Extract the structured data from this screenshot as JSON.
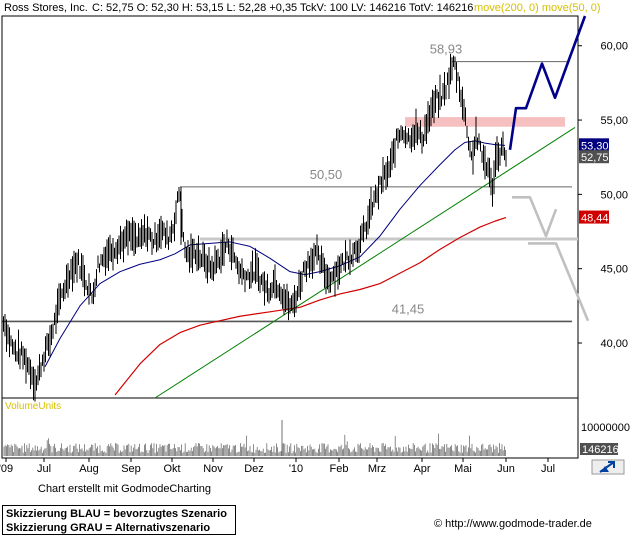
{
  "header": {
    "name": "Ross Stores, Inc.",
    "quote": "C: 52,75 O: 52,30 H: 53,15 L: 52,28 +0,35 TckV: 100 LV: 146216 TotV: 146216",
    "ma_legend": "move(200, 0) move(50, 0)"
  },
  "volume_label": "VolumeUnits",
  "credit": "Chart erstellt mit GodmodeCharting",
  "legend": {
    "blue": "Skizzierung BLAU = bevorzugtes Szenario",
    "grey": "Skizzierung GRAU = Alternativszenario"
  },
  "footer": {
    "copyright": "©",
    "url": "http://www.godmode-trader.de"
  },
  "chart_data": {
    "type": "line",
    "price_axis": {
      "ticks": [
        "60,00",
        "55,00",
        "50,00",
        "45,00",
        "40,00"
      ],
      "ylim": [
        36.3,
        62.0
      ]
    },
    "volume_axis": {
      "ticks": [
        "10000000"
      ],
      "last_volume": "146216"
    },
    "x_ticks": [
      "'09",
      "Jul",
      "Aug",
      "Sep",
      "Okt",
      "Nov",
      "Dez",
      "'10",
      "Feb",
      "Mrz",
      "Apr",
      "Mai",
      "Jun",
      "Jul"
    ],
    "price_labels": {
      "last_close": "52,75",
      "ma50": "53,30",
      "ma200": "48,44"
    },
    "levels": [
      {
        "label": "58,93",
        "value": 58.93
      },
      {
        "label": "50,50",
        "value": 50.5
      },
      {
        "label": "41,45",
        "value": 41.45
      }
    ],
    "resistance_zone": [
      54.55,
      55.2
    ],
    "series_colors": {
      "price": "#000000",
      "ma50": "#000080",
      "ma200": "#d00000",
      "trend": "#008000",
      "blue_scenario": "#00008b",
      "grey_scenario": "#c0c0c0"
    },
    "price_path": [
      [
        2,
        42.0
      ],
      [
        8,
        40.5
      ],
      [
        14,
        39.5
      ],
      [
        22,
        39.2
      ],
      [
        30,
        38.3
      ],
      [
        36,
        37.2
      ],
      [
        42,
        38.8
      ],
      [
        50,
        40.2
      ],
      [
        56,
        41.8
      ],
      [
        62,
        43.3
      ],
      [
        70,
        44.8
      ],
      [
        78,
        45.5
      ],
      [
        86,
        44.2
      ],
      [
        92,
        43.0
      ],
      [
        98,
        45.2
      ],
      [
        106,
        46.0
      ],
      [
        114,
        46.4
      ],
      [
        122,
        46.8
      ],
      [
        130,
        47.2
      ],
      [
        138,
        46.8
      ],
      [
        146,
        47.5
      ],
      [
        154,
        46.8
      ],
      [
        160,
        47.7
      ],
      [
        168,
        47.0
      ],
      [
        174,
        48.0
      ],
      [
        180,
        50.5
      ],
      [
        184,
        46.3
      ],
      [
        190,
        45.8
      ],
      [
        196,
        46.2
      ],
      [
        204,
        45.5
      ],
      [
        212,
        45.0
      ],
      [
        220,
        45.8
      ],
      [
        228,
        46.8
      ],
      [
        234,
        45.8
      ],
      [
        240,
        44.8
      ],
      [
        248,
        44.5
      ],
      [
        256,
        44.9
      ],
      [
        262,
        44.1
      ],
      [
        268,
        43.5
      ],
      [
        274,
        44.2
      ],
      [
        280,
        43.7
      ],
      [
        286,
        42.8
      ],
      [
        292,
        42.4
      ],
      [
        298,
        43.5
      ],
      [
        304,
        45.0
      ],
      [
        310,
        45.6
      ],
      [
        316,
        46.0
      ],
      [
        322,
        45.2
      ],
      [
        328,
        44.3
      ],
      [
        336,
        44.8
      ],
      [
        344,
        45.5
      ],
      [
        352,
        46.1
      ],
      [
        360,
        46.7
      ],
      [
        366,
        47.8
      ],
      [
        372,
        49.2
      ],
      [
        378,
        50.2
      ],
      [
        384,
        51.2
      ],
      [
        390,
        51.7
      ],
      [
        396,
        53.5
      ],
      [
        402,
        54.4
      ],
      [
        408,
        53.8
      ],
      [
        416,
        54.3
      ],
      [
        422,
        53.7
      ],
      [
        428,
        55.0
      ],
      [
        436,
        56.3
      ],
      [
        442,
        56.5
      ],
      [
        448,
        57.6
      ],
      [
        454,
        58.9
      ],
      [
        460,
        57.2
      ],
      [
        466,
        54.8
      ],
      [
        472,
        52.3
      ],
      [
        476,
        54.0
      ],
      [
        482,
        52.6
      ],
      [
        488,
        51.8
      ],
      [
        492,
        50.2
      ],
      [
        496,
        52.5
      ],
      [
        502,
        53.2
      ],
      [
        506,
        52.75
      ]
    ],
    "ma50_path": [
      [
        45,
        38.4
      ],
      [
        60,
        40.3
      ],
      [
        80,
        42.5
      ],
      [
        100,
        44.0
      ],
      [
        120,
        44.8
      ],
      [
        140,
        45.3
      ],
      [
        160,
        45.6
      ],
      [
        175,
        46.0
      ],
      [
        190,
        46.6
      ],
      [
        210,
        46.7
      ],
      [
        230,
        46.8
      ],
      [
        250,
        46.5
      ],
      [
        270,
        45.7
      ],
      [
        290,
        44.8
      ],
      [
        305,
        44.6
      ],
      [
        320,
        44.8
      ],
      [
        340,
        45.2
      ],
      [
        360,
        45.8
      ],
      [
        380,
        47.2
      ],
      [
        400,
        49.0
      ],
      [
        420,
        50.6
      ],
      [
        440,
        52.0
      ],
      [
        455,
        53.0
      ],
      [
        465,
        53.5
      ],
      [
        475,
        53.6
      ],
      [
        485,
        53.45
      ],
      [
        495,
        53.35
      ],
      [
        505,
        53.3
      ]
    ],
    "ma200_path": [
      [
        115,
        36.5
      ],
      [
        140,
        38.6
      ],
      [
        160,
        39.9
      ],
      [
        180,
        40.7
      ],
      [
        200,
        41.2
      ],
      [
        220,
        41.5
      ],
      [
        240,
        41.8
      ],
      [
        270,
        42.1
      ],
      [
        300,
        42.4
      ],
      [
        320,
        42.9
      ],
      [
        340,
        43.3
      ],
      [
        360,
        43.6
      ],
      [
        380,
        44.0
      ],
      [
        400,
        44.7
      ],
      [
        420,
        45.4
      ],
      [
        440,
        46.3
      ],
      [
        460,
        47.1
      ],
      [
        480,
        47.8
      ],
      [
        495,
        48.2
      ],
      [
        506,
        48.44
      ]
    ],
    "trendline": [
      [
        155,
        36.3
      ],
      [
        575,
        54.5
      ]
    ],
    "blue_scenario": [
      [
        510,
        53.0
      ],
      [
        516,
        55.8
      ],
      [
        526,
        55.8
      ],
      [
        542,
        58.8
      ],
      [
        555,
        56.5
      ],
      [
        585,
        62.0
      ]
    ],
    "grey_scenario": [
      [
        512,
        49.8
      ],
      [
        530,
        49.8
      ],
      [
        546,
        47.2
      ],
      [
        556,
        49.0
      ],
      [
        528,
        46.7
      ],
      [
        556,
        46.7
      ],
      [
        588,
        41.5
      ]
    ],
    "volume_bars": 420
  }
}
